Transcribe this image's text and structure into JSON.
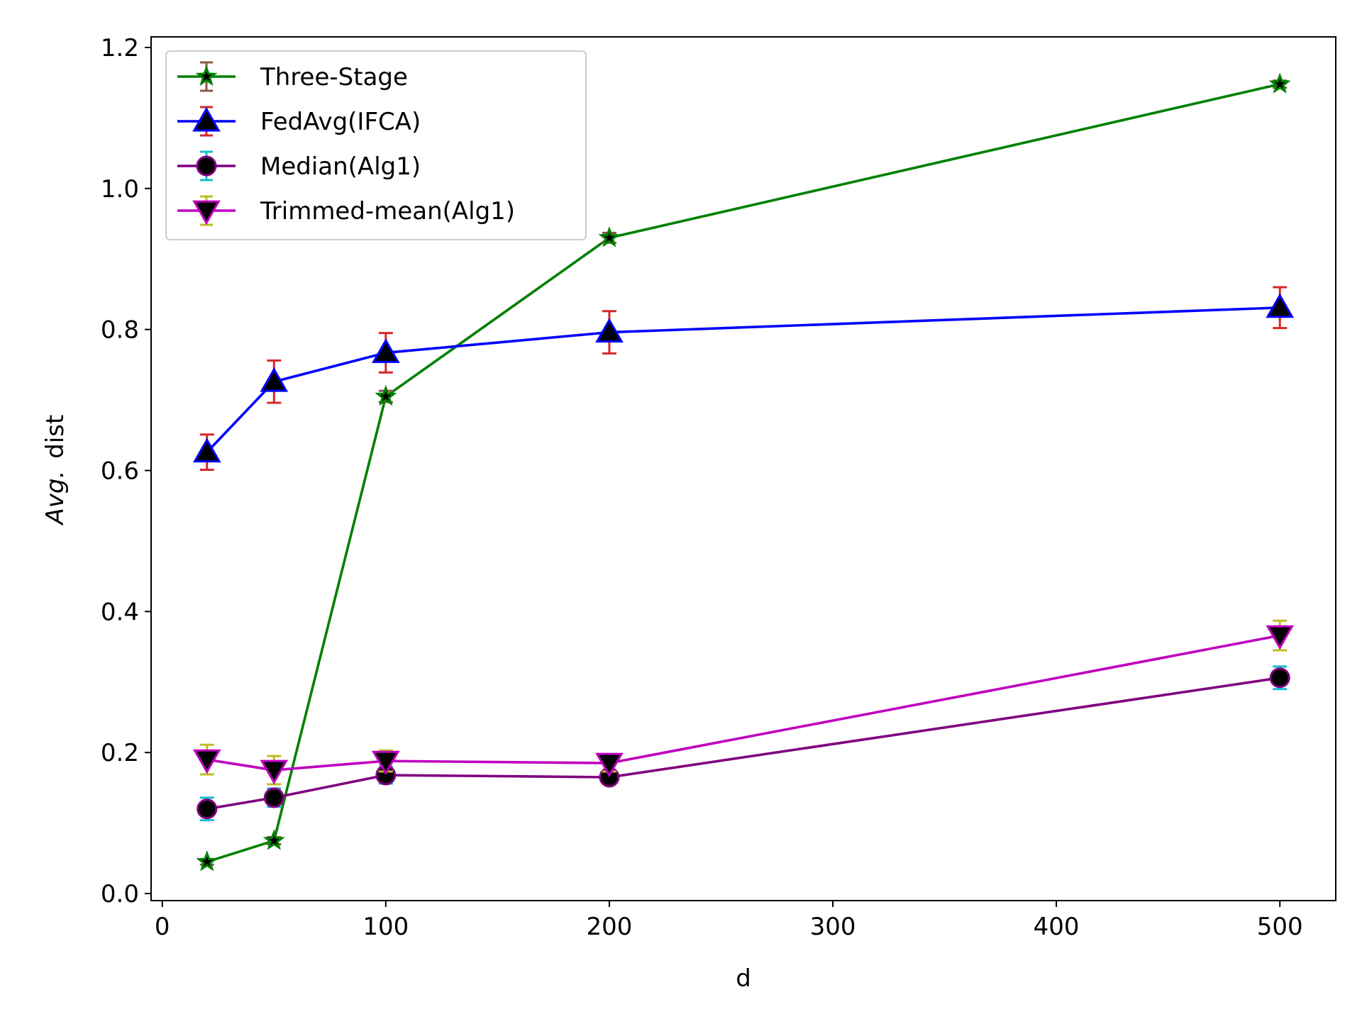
{
  "chart_data": {
    "type": "line",
    "title": "",
    "xlabel": "d",
    "ylabel": "dist",
    "ylabel_prefix": "Avg.",
    "xlim": [
      -5,
      525
    ],
    "ylim": [
      -0.01,
      1.215
    ],
    "xticks": [
      0,
      100,
      200,
      300,
      400,
      500
    ],
    "xtick_labels": [
      "0",
      "100",
      "200",
      "300",
      "400",
      "500"
    ],
    "yticks": [
      0.0,
      0.2,
      0.4,
      0.6,
      0.8,
      1.0,
      1.2
    ],
    "ytick_labels": [
      "0.0",
      "0.2",
      "0.4",
      "0.6",
      "0.8",
      "1.0",
      "1.2"
    ],
    "grid": false,
    "legend_position": "top-left",
    "x": [
      20,
      50,
      100,
      200,
      500
    ],
    "series": [
      {
        "name": "Three-Stage",
        "values": [
          0.045,
          0.075,
          0.705,
          0.93,
          1.148
        ],
        "errors": [
          0.004,
          0.005,
          0.008,
          0.007,
          0.005
        ],
        "color": "#008000",
        "error_color": "#8c564b",
        "marker": "star"
      },
      {
        "name": "FedAvg(IFCA)",
        "values": [
          0.626,
          0.726,
          0.767,
          0.796,
          0.831
        ],
        "errors": [
          0.025,
          0.03,
          0.028,
          0.03,
          0.029
        ],
        "color": "#0000ff",
        "error_color": "#d62728",
        "marker": "triangle-up"
      },
      {
        "name": "Median(Alg1)",
        "values": [
          0.12,
          0.136,
          0.168,
          0.165,
          0.306
        ],
        "errors": [
          0.016,
          0.013,
          0.012,
          0.008,
          0.016
        ],
        "color": "#800080",
        "error_color": "#17becf",
        "marker": "circle"
      },
      {
        "name": "Trimmed-mean(Alg1)",
        "values": [
          0.19,
          0.175,
          0.188,
          0.185,
          0.366
        ],
        "errors": [
          0.021,
          0.02,
          0.015,
          0.012,
          0.021
        ],
        "color": "#bf00bf",
        "error_color": "#bcbd22",
        "marker": "triangle-down"
      }
    ]
  }
}
